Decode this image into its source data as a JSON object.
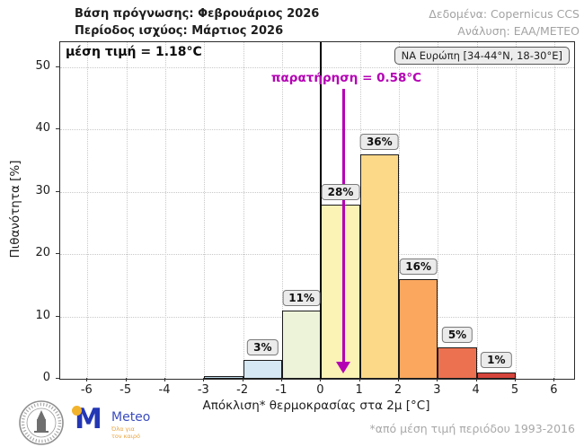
{
  "header": {
    "left_line1": "Βάση πρόγνωσης: Φεβρουάριος 2026",
    "left_line2": "Περίοδος ισχύος: Μάρτιος 2026",
    "right_line1": "Δεδομένα: Copernicus CCS",
    "right_line2": "Ανάλυση: ΕΑΑ/ΜΕΤΕΟ"
  },
  "chart_data": {
    "type": "bar",
    "title": "",
    "xlabel": "Απόκλιση* θερμοκρασίας στα 2μ [°C]",
    "ylabel": "Πιθανότητα [%]",
    "xlim": [
      -6.7,
      6.5
    ],
    "ylim": [
      0,
      54
    ],
    "x_ticks": [
      -6,
      -5,
      -4,
      -3,
      -2,
      -1,
      0,
      1,
      2,
      3,
      4,
      5,
      6
    ],
    "y_ticks": [
      0,
      10,
      20,
      30,
      40,
      50
    ],
    "grid": "dotted",
    "legend_position": "none",
    "bins": [
      {
        "from": -3,
        "to": -2,
        "value": 0.5,
        "label": "",
        "color": "#bcd8e8"
      },
      {
        "from": -2,
        "to": -1,
        "value": 3,
        "label": "3%",
        "color": "#d5e8f3"
      },
      {
        "from": -1,
        "to": 0,
        "value": 11,
        "label": "11%",
        "color": "#edf3d8"
      },
      {
        "from": 0,
        "to": 1,
        "value": 28,
        "label": "28%",
        "color": "#fbf2b6"
      },
      {
        "from": 1,
        "to": 2,
        "value": 36,
        "label": "36%",
        "color": "#fbd989"
      },
      {
        "from": 2,
        "to": 3,
        "value": 16,
        "label": "16%",
        "color": "#fba75e"
      },
      {
        "from": 3,
        "to": 4,
        "value": 5,
        "label": "5%",
        "color": "#ec7150"
      },
      {
        "from": 4,
        "to": 5,
        "value": 1,
        "label": "1%",
        "color": "#d6453c"
      }
    ],
    "mean_label": "μέση τιμή = 1.18°C",
    "region_label": "ΝΑ Ευρώπη [34-44°N, 18-30°E]",
    "observation": {
      "label": "παρατήρηση = 0.58°C",
      "x": 0.58,
      "color": "#b400b4"
    },
    "zero_line_x": 0
  },
  "footer": {
    "footnote": "*από μέση τιμή περιόδου 1993-2016"
  },
  "logos": {
    "meteo_name": "Meteo",
    "meteo_tagline_line1": "Όλα για",
    "meteo_tagline_line2": "τον καιρό",
    "meteo_m": "M"
  },
  "colors": {
    "observation_magenta": "#b400b4",
    "zero_line": "#000000",
    "grid": "#c9c9c9",
    "bar_edge": "#1b1b1b",
    "header_muted": "#a3a3a3"
  }
}
